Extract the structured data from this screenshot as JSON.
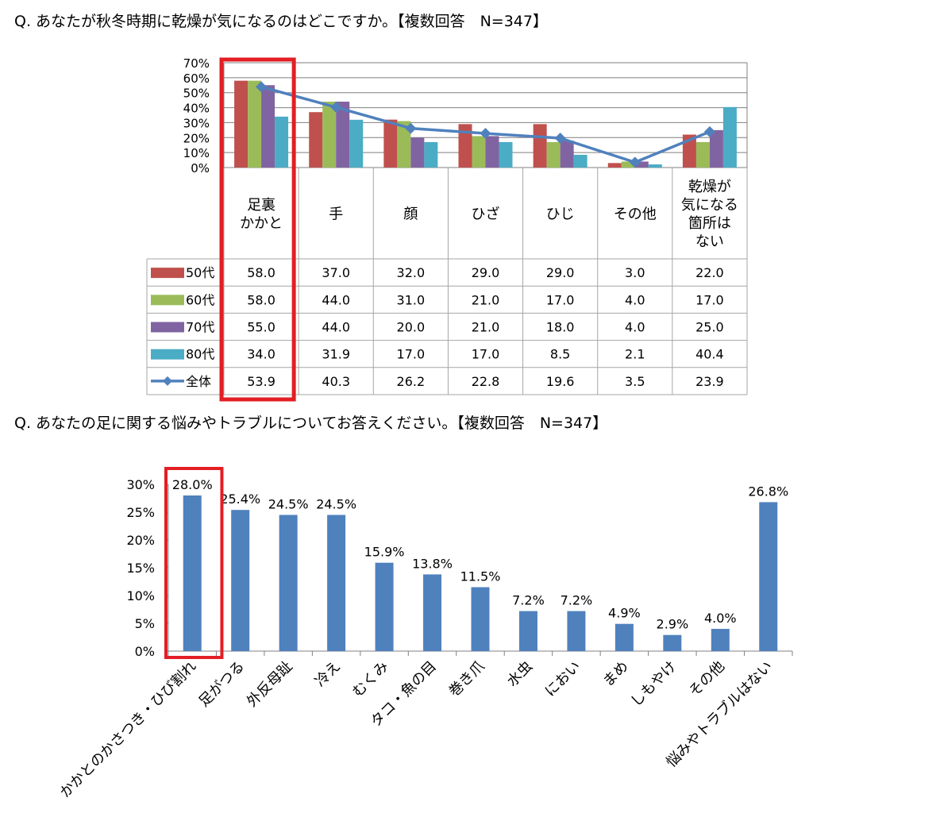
{
  "questions": {
    "q1": "Q. あなたが秋冬時期に乾燥が気になるのはどこですか。【複数回答　N=347】",
    "q2": "Q. あなたの足に関する悩みやトラブルについてお答えください。【複数回答　N=347】"
  },
  "colors": {
    "50代": "#C0504D",
    "60代": "#9BBB59",
    "70代": "#8064A2",
    "80代": "#4BACC6",
    "全体": "#4F81BD",
    "bar2": "#4F81BD",
    "highlight": "#E31E24"
  },
  "chart_data": [
    {
      "type": "bar",
      "combo_line_series": "全体",
      "categories": [
        "足裏\nかかと",
        "手",
        "顔",
        "ひざ",
        "ひじ",
        "その他",
        "乾燥が\n気になる\n箇所は\nない"
      ],
      "series": [
        {
          "name": "50代",
          "type": "bar",
          "values": [
            58.0,
            37.0,
            32.0,
            29.0,
            29.0,
            3.0,
            22.0
          ],
          "labels": [
            "58.0",
            "37.0",
            "32.0",
            "29.0",
            "29.0",
            "3.0",
            "22.0"
          ]
        },
        {
          "name": "60代",
          "type": "bar",
          "values": [
            58.0,
            44.0,
            31.0,
            21.0,
            17.0,
            4.0,
            17.0
          ],
          "labels": [
            "58.0",
            "44.0",
            "31.0",
            "21.0",
            "17.0",
            "4.0",
            "17.0"
          ]
        },
        {
          "name": "70代",
          "type": "bar",
          "values": [
            55.0,
            44.0,
            20.0,
            21.0,
            18.0,
            4.0,
            25.0
          ],
          "labels": [
            "55.0",
            "44.0",
            "20.0",
            "21.0",
            "18.0",
            "4.0",
            "25.0"
          ]
        },
        {
          "name": "80代",
          "type": "bar",
          "values": [
            34.0,
            31.9,
            17.0,
            17.0,
            8.5,
            2.1,
            40.4
          ],
          "labels": [
            "34.0",
            "31.9",
            "17.0",
            "17.0",
            "8.5",
            "2.1",
            "40.4"
          ]
        },
        {
          "name": "全体",
          "type": "line",
          "values": [
            53.9,
            40.3,
            26.2,
            22.8,
            19.6,
            3.5,
            23.9
          ],
          "labels": [
            "53.9",
            "40.3",
            "26.2",
            "22.8",
            "19.6",
            "3.5",
            "23.9"
          ]
        }
      ],
      "yticks": [
        "0%",
        "10%",
        "20%",
        "30%",
        "40%",
        "50%",
        "60%",
        "70%"
      ],
      "ylim": [
        0,
        70
      ],
      "grid": true,
      "legend": "data-table",
      "highlight_category": 0
    },
    {
      "type": "bar",
      "categories": [
        "かかとのかさつき・ひび割れ",
        "足がつる",
        "外反母趾",
        "冷え",
        "むくみ",
        "タコ・魚の目",
        "巻き爪",
        "水虫",
        "におい",
        "まめ",
        "しもやけ",
        "その他",
        "悩みやトラブルはない"
      ],
      "values": [
        28.0,
        25.4,
        24.5,
        24.5,
        15.9,
        13.8,
        11.5,
        7.2,
        7.2,
        4.9,
        2.9,
        4.0,
        26.8
      ],
      "labels": [
        "28.0%",
        "25.4%",
        "24.5%",
        "24.5%",
        "15.9%",
        "13.8%",
        "11.5%",
        "7.2%",
        "7.2%",
        "4.9%",
        "2.9%",
        "4.0%",
        "26.8%"
      ],
      "yticks": [
        "0%",
        "5%",
        "10%",
        "15%",
        "20%",
        "25%",
        "30%"
      ],
      "ylim": [
        0,
        30
      ],
      "grid": false,
      "highlight_category": 0
    }
  ]
}
